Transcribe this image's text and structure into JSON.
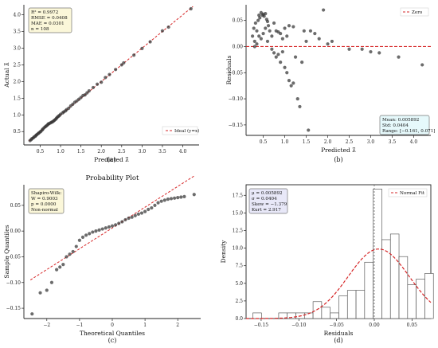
{
  "chart_data": [
    {
      "type": "scatter",
      "caption": "(a)",
      "xlabel": "Predicted λ̂",
      "ylabel": "Actual λ̂",
      "xlim": [
        0.1,
        4.4
      ],
      "ylim": [
        0.1,
        4.3
      ],
      "xticks": [
        "0.5",
        "1.0",
        "1.5",
        "2.0",
        "2.5",
        "3.0",
        "3.5",
        "4.0"
      ],
      "yticks": [
        "0.5",
        "1.0",
        "1.5",
        "2.0",
        "2.5",
        "3.0",
        "3.5",
        "4.0"
      ],
      "stats": [
        "R² = 0.9972",
        "RMSE = 0.0408",
        "MAE = 0.0301",
        "n = 108"
      ],
      "legend": "Ideal (y=x)",
      "points": [
        [
          0.25,
          0.23
        ],
        [
          0.28,
          0.26
        ],
        [
          0.3,
          0.29
        ],
        [
          0.33,
          0.31
        ],
        [
          0.35,
          0.34
        ],
        [
          0.38,
          0.36
        ],
        [
          0.4,
          0.39
        ],
        [
          0.42,
          0.41
        ],
        [
          0.45,
          0.44
        ],
        [
          0.47,
          0.46
        ],
        [
          0.5,
          0.49
        ],
        [
          0.52,
          0.51
        ],
        [
          0.55,
          0.55
        ],
        [
          0.57,
          0.58
        ],
        [
          0.6,
          0.62
        ],
        [
          0.63,
          0.65
        ],
        [
          0.65,
          0.67
        ],
        [
          0.68,
          0.7
        ],
        [
          0.7,
          0.73
        ],
        [
          0.72,
          0.74
        ],
        [
          0.75,
          0.76
        ],
        [
          0.78,
          0.78
        ],
        [
          0.8,
          0.79
        ],
        [
          0.83,
          0.82
        ],
        [
          0.85,
          0.84
        ],
        [
          0.88,
          0.87
        ],
        [
          0.9,
          0.9
        ],
        [
          0.92,
          0.93
        ],
        [
          0.95,
          0.96
        ],
        [
          0.97,
          0.98
        ],
        [
          1.0,
          1.02
        ],
        [
          1.05,
          1.06
        ],
        [
          1.08,
          1.09
        ],
        [
          1.12,
          1.12
        ],
        [
          1.15,
          1.16
        ],
        [
          1.2,
          1.2
        ],
        [
          1.25,
          1.27
        ],
        [
          1.3,
          1.32
        ],
        [
          1.35,
          1.38
        ],
        [
          1.4,
          1.42
        ],
        [
          1.45,
          1.47
        ],
        [
          1.5,
          1.52
        ],
        [
          1.55,
          1.58
        ],
        [
          1.6,
          1.6
        ],
        [
          1.65,
          1.66
        ],
        [
          1.7,
          1.72
        ],
        [
          1.8,
          1.82
        ],
        [
          1.9,
          1.92
        ],
        [
          2.0,
          1.98
        ],
        [
          2.1,
          2.12
        ],
        [
          2.2,
          2.21
        ],
        [
          2.35,
          2.36
        ],
        [
          2.5,
          2.5
        ],
        [
          2.55,
          2.56
        ],
        [
          2.8,
          2.79
        ],
        [
          3.0,
          2.99
        ],
        [
          3.2,
          3.19
        ],
        [
          3.5,
          3.52
        ],
        [
          3.65,
          3.63
        ],
        [
          4.2,
          4.18
        ]
      ]
    },
    {
      "type": "scatter",
      "caption": "(b)",
      "xlabel": "Predicted λ̂",
      "ylabel": "Residuals",
      "xlim": [
        0.1,
        4.4
      ],
      "ylim": [
        -0.17,
        0.08
      ],
      "xticks": [
        "0.5",
        "1.0",
        "1.5",
        "2.0",
        "2.5",
        "3.0",
        "3.5",
        "4.0"
      ],
      "yticks": [
        "−0.15",
        "−0.10",
        "−0.05",
        "0.00",
        "0.05"
      ],
      "legend": "Zero",
      "stats": [
        "Mean: 0.005892",
        "Std: 0.0404",
        "Range: [−0.161, 0.071]"
      ],
      "points": [
        [
          0.25,
          0.02
        ],
        [
          0.28,
          0.035
        ],
        [
          0.3,
          0.01
        ],
        [
          0.32,
          0.045
        ],
        [
          0.35,
          0.03
        ],
        [
          0.38,
          0.05
        ],
        [
          0.4,
          0.06
        ],
        [
          0.42,
          0.055
        ],
        [
          0.45,
          0.065
        ],
        [
          0.48,
          0.06
        ],
        [
          0.5,
          0.062
        ],
        [
          0.52,
          0.058
        ],
        [
          0.55,
          0.063
        ],
        [
          0.58,
          0.052
        ],
        [
          0.6,
          0.048
        ],
        [
          0.62,
          0.04
        ],
        [
          0.65,
          0.03
        ],
        [
          0.3,
          0.0
        ],
        [
          0.35,
          0.005
        ],
        [
          0.4,
          0.02
        ],
        [
          0.45,
          0.015
        ],
        [
          0.5,
          0.025
        ],
        [
          0.55,
          0.035
        ],
        [
          0.6,
          0.01
        ],
        [
          0.7,
          0.02
        ],
        [
          0.75,
          0.045
        ],
        [
          0.8,
          0.03
        ],
        [
          0.85,
          0.028
        ],
        [
          0.9,
          0.025
        ],
        [
          0.95,
          0.015
        ],
        [
          0.7,
          -0.005
        ],
        [
          0.75,
          -0.012
        ],
        [
          0.8,
          -0.02
        ],
        [
          0.85,
          -0.015
        ],
        [
          0.9,
          -0.03
        ],
        [
          0.95,
          -0.01
        ],
        [
          1.0,
          -0.04
        ],
        [
          1.05,
          -0.05
        ],
        [
          1.1,
          -0.065
        ],
        [
          1.15,
          -0.075
        ],
        [
          1.2,
          -0.07
        ],
        [
          1.0,
          0.035
        ],
        [
          1.05,
          0.02
        ],
        [
          1.1,
          0.04
        ],
        [
          1.2,
          0.038
        ],
        [
          1.25,
          -0.02
        ],
        [
          1.3,
          -0.1
        ],
        [
          1.35,
          -0.115
        ],
        [
          1.4,
          -0.03
        ],
        [
          1.45,
          0.03
        ],
        [
          1.5,
          0.01
        ],
        [
          1.55,
          -0.16
        ],
        [
          1.6,
          0.03
        ],
        [
          1.7,
          0.025
        ],
        [
          1.8,
          0.015
        ],
        [
          1.9,
          0.07
        ],
        [
          2.0,
          0.005
        ],
        [
          2.1,
          0.01
        ],
        [
          2.5,
          -0.005
        ],
        [
          2.8,
          -0.005
        ],
        [
          3.0,
          -0.01
        ],
        [
          3.2,
          -0.012
        ],
        [
          3.65,
          -0.02
        ],
        [
          4.2,
          -0.035
        ]
      ]
    },
    {
      "type": "scatter",
      "caption": "(c)",
      "title": "Probability Plot",
      "xlabel": "Theoretical Quantiles",
      "ylabel": "Sample Quantiles",
      "xlim": [
        -2.7,
        2.7
      ],
      "ylim": [
        -0.17,
        0.09
      ],
      "xticks": [
        "−2",
        "−1",
        "0",
        "1",
        "2"
      ],
      "yticks": [
        "−0.15",
        "−0.10",
        "−0.05",
        "0.00",
        "0.05"
      ],
      "stats": [
        "Shapiro-Wilk:",
        "W = 0.9003",
        "p = 0.0000",
        "Non-normal"
      ],
      "reference_line": [
        [
          -2.5,
          -0.095
        ],
        [
          2.5,
          0.107
        ]
      ],
      "points": [
        [
          -2.45,
          -0.161
        ],
        [
          -2.2,
          -0.12
        ],
        [
          -2.0,
          -0.115
        ],
        [
          -1.85,
          -0.1
        ],
        [
          -1.7,
          -0.075
        ],
        [
          -1.6,
          -0.07
        ],
        [
          -1.5,
          -0.065
        ],
        [
          -1.4,
          -0.05
        ],
        [
          -1.3,
          -0.045
        ],
        [
          -1.2,
          -0.04
        ],
        [
          -1.1,
          -0.03
        ],
        [
          -1.0,
          -0.018
        ],
        [
          -0.9,
          -0.012
        ],
        [
          -0.8,
          -0.008
        ],
        [
          -0.7,
          -0.005
        ],
        [
          -0.6,
          -0.002
        ],
        [
          -0.5,
          0.0
        ],
        [
          -0.4,
          0.002
        ],
        [
          -0.3,
          0.004
        ],
        [
          -0.2,
          0.006
        ],
        [
          -0.1,
          0.008
        ],
        [
          0.0,
          0.01
        ],
        [
          0.1,
          0.012
        ],
        [
          0.2,
          0.015
        ],
        [
          0.3,
          0.018
        ],
        [
          0.4,
          0.022
        ],
        [
          0.5,
          0.025
        ],
        [
          0.6,
          0.027
        ],
        [
          0.7,
          0.03
        ],
        [
          0.8,
          0.033
        ],
        [
          0.9,
          0.035
        ],
        [
          1.0,
          0.038
        ],
        [
          1.1,
          0.042
        ],
        [
          1.2,
          0.045
        ],
        [
          1.3,
          0.05
        ],
        [
          1.4,
          0.055
        ],
        [
          1.5,
          0.058
        ],
        [
          1.6,
          0.06
        ],
        [
          1.7,
          0.062
        ],
        [
          1.8,
          0.063
        ],
        [
          1.9,
          0.064
        ],
        [
          2.0,
          0.065
        ],
        [
          2.1,
          0.066
        ],
        [
          2.2,
          0.067
        ],
        [
          2.5,
          0.071
        ]
      ]
    },
    {
      "type": "bar",
      "caption": "(d)",
      "xlabel": "Residuals",
      "ylabel": "Density",
      "xlim": [
        -0.17,
        0.075
      ],
      "ylim": [
        0,
        19
      ],
      "xticks": [
        "−0.15",
        "−0.10",
        "−0.05",
        "0.00",
        "0.05"
      ],
      "yticks": [
        "0.0",
        "2.5",
        "5.0",
        "7.5",
        "10.0",
        "12.5",
        "15.0",
        "17.5"
      ],
      "stats": [
        "μ = 0.005892",
        "σ = 0.0404",
        "Skew = −1.379",
        "Kurt = 2.917"
      ],
      "legend": "Normal Fit",
      "bin_edges": [
        -0.161,
        -0.1496,
        -0.1382,
        -0.1268,
        -0.1154,
        -0.104,
        -0.0926,
        -0.0812,
        -0.0698,
        -0.0584,
        -0.047,
        -0.0356,
        -0.0242,
        -0.0128,
        -0.0014,
        0.01,
        0.0214,
        0.0328,
        0.0442,
        0.0556,
        0.067,
        0.0784
      ],
      "values": [
        0.8,
        0,
        0,
        0.8,
        0.8,
        0.8,
        0.8,
        2.4,
        1.6,
        0.8,
        3.2,
        4.0,
        4.0,
        8.0,
        18.4,
        11.2,
        12.0,
        8.8,
        4.8,
        5.6,
        6.4
      ],
      "fit": {
        "mu": 0.005892,
        "sigma": 0.0404
      }
    }
  ]
}
